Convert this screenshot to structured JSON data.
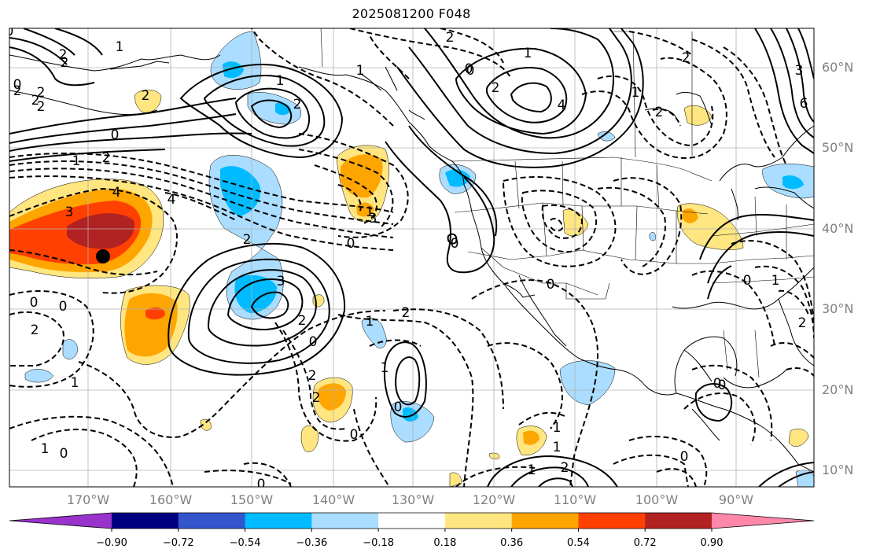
{
  "title": "2025081200 F048",
  "lat_labels": [
    "60°N",
    "50°N",
    "40°N",
    "30°N",
    "20°N",
    "10°N"
  ],
  "lon_labels": [
    "170°W",
    "160°W",
    "150°W",
    "140°W",
    "130°W",
    "120°W",
    "110°W",
    "100°W",
    "90°W"
  ],
  "colorbar": {
    "ticks": [
      "−0.90",
      "−0.72",
      "−0.54",
      "−0.36",
      "−0.18",
      "0.18",
      "0.36",
      "0.54",
      "0.72",
      "0.90"
    ],
    "colors": [
      "#9933cc",
      "#000080",
      "#3355cc",
      "#00bbff",
      "#aaddff",
      "#ffffff",
      "#ffe680",
      "#ffa500",
      "#ff4000",
      "#b22222",
      "#ff88aa"
    ]
  },
  "contour_labels": [
    "2",
    "2",
    "2",
    "0",
    "2",
    "1",
    "2",
    "2",
    "2",
    "0",
    "1",
    "2",
    "4",
    "3",
    "4",
    "3",
    "0",
    "2",
    "2",
    "1",
    "1",
    "2",
    "0",
    "2",
    "0",
    "2",
    "1",
    "1",
    "0",
    "2",
    "3",
    "4",
    "2",
    "0",
    "1",
    "1",
    "2",
    "0",
    "0",
    "0",
    "1",
    "2",
    "0",
    "1",
    "0",
    "0",
    "2",
    "1",
    "1",
    "0",
    "3",
    "6",
    "2",
    "1",
    "0",
    "2",
    "2",
    "1",
    "0",
    "0",
    "1",
    "0",
    "0"
  ],
  "marker": "station-dot"
}
